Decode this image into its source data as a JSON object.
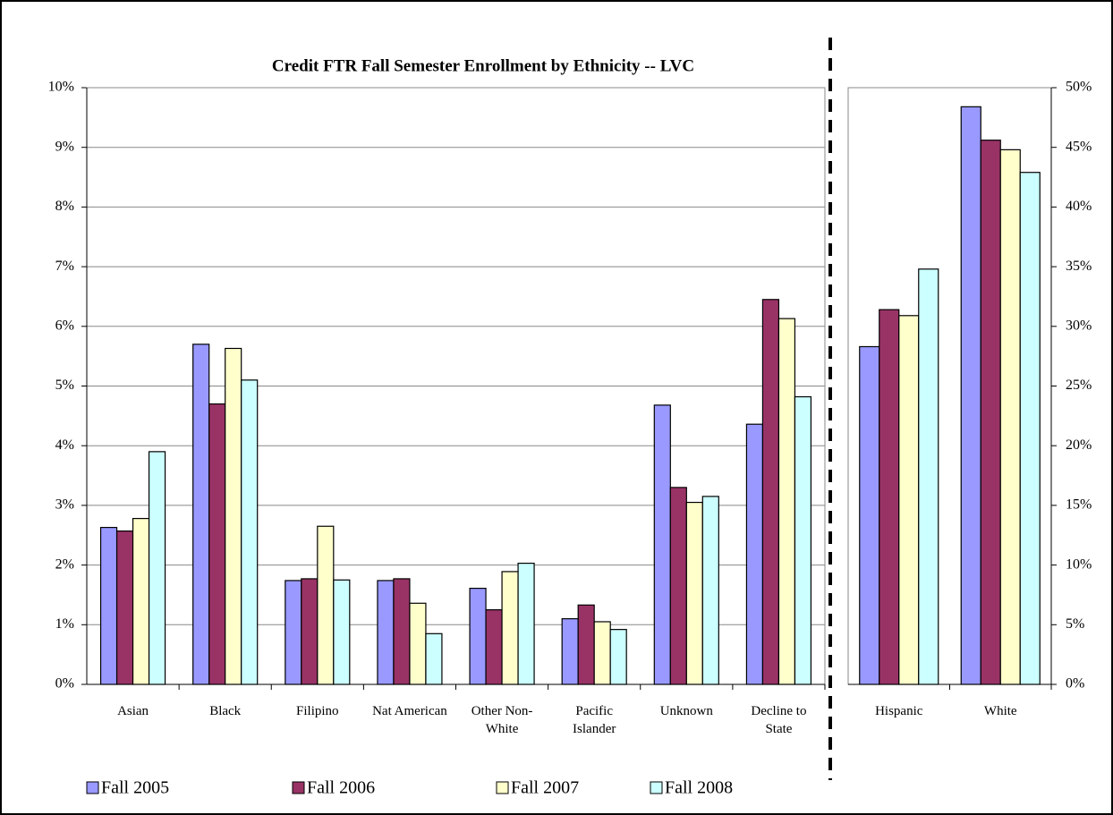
{
  "chart_data": [
    {
      "type": "bar",
      "title": "Credit FTR Fall Semester Enrollment by Ethnicity -- LVC",
      "categories": [
        "Asian",
        "Black",
        "Filipino",
        "Nat American",
        "Other Non-White",
        "Pacific Islander",
        "Unknown",
        "Decline to State"
      ],
      "series": [
        {
          "name": "Fall 2005",
          "color": "#9999ff",
          "values": [
            2.63,
            5.7,
            1.74,
            1.74,
            1.61,
            1.1,
            4.68,
            4.36
          ]
        },
        {
          "name": "Fall 2006",
          "color": "#993366",
          "values": [
            2.57,
            4.7,
            1.77,
            1.77,
            1.25,
            1.33,
            3.3,
            6.45
          ]
        },
        {
          "name": "Fall 2007",
          "color": "#ffffcc",
          "values": [
            2.78,
            5.63,
            2.65,
            1.36,
            1.89,
            1.05,
            3.05,
            6.13
          ]
        },
        {
          "name": "Fall 2008",
          "color": "#ccffff",
          "values": [
            3.9,
            5.1,
            1.75,
            0.85,
            2.03,
            0.92,
            3.15,
            4.82
          ]
        }
      ],
      "ylim": [
        0,
        10
      ],
      "yticks": [
        {
          "value": 0,
          "label": "0%"
        },
        {
          "value": 1,
          "label": "1%"
        },
        {
          "value": 2,
          "label": "2%"
        },
        {
          "value": 3,
          "label": "3%"
        },
        {
          "value": 4,
          "label": "4%"
        },
        {
          "value": 5,
          "label": "5%"
        },
        {
          "value": 6,
          "label": "6%"
        },
        {
          "value": 7,
          "label": "7%"
        },
        {
          "value": 8,
          "label": "8%"
        },
        {
          "value": 9,
          "label": "9%"
        },
        {
          "value": 10,
          "label": "10%"
        }
      ],
      "grid": true,
      "legend": "bottom",
      "y_axis_position": "left"
    },
    {
      "type": "bar",
      "categories": [
        "Hispanic",
        "White"
      ],
      "series": [
        {
          "color": "#9999ff",
          "values": [
            28.3,
            48.4
          ]
        },
        {
          "color": "#993366",
          "values": [
            31.4,
            45.6
          ]
        },
        {
          "color": "#ffffcc",
          "values": [
            30.9,
            44.8
          ]
        },
        {
          "color": "#ccffff",
          "values": [
            34.8,
            42.9
          ]
        }
      ],
      "ylim": [
        0,
        50
      ],
      "yticks": [
        {
          "value": 0,
          "label": "0%"
        },
        {
          "value": 5,
          "label": "5%"
        },
        {
          "value": 10,
          "label": "10%"
        },
        {
          "value": 15,
          "label": "15%"
        },
        {
          "value": 20,
          "label": "20%"
        },
        {
          "value": 25,
          "label": "25%"
        },
        {
          "value": 30,
          "label": "30%"
        },
        {
          "value": 35,
          "label": "35%"
        },
        {
          "value": 40,
          "label": "40%"
        },
        {
          "value": 45,
          "label": "45%"
        },
        {
          "value": 50,
          "label": "50%"
        }
      ],
      "grid": false,
      "y_axis_position": "right"
    }
  ]
}
